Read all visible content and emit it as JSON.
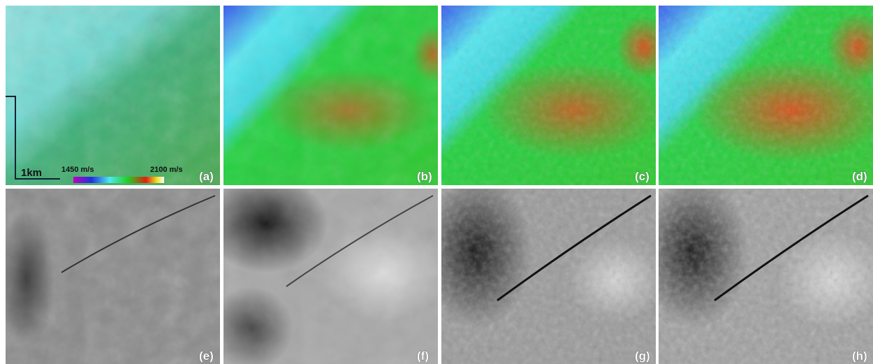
{
  "panels": [
    {
      "label": "(a)"
    },
    {
      "label": "(b)"
    },
    {
      "label": "(c)"
    },
    {
      "label": "(d)"
    },
    {
      "label": "(e)"
    },
    {
      "label": "(f)"
    },
    {
      "label": "(g)"
    },
    {
      "label": "(h)"
    }
  ],
  "scale_bar": {
    "label": "1km"
  },
  "colorbar": {
    "min_label": "1450 m/s",
    "max_label": "2100 m/s"
  }
}
